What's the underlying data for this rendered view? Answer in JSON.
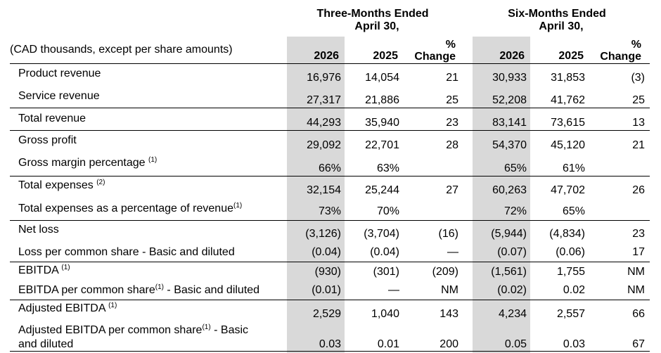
{
  "table": {
    "units_label": "(CAD thousands, except per share amounts)",
    "groups": [
      {
        "line1": "Three-Months Ended",
        "line2": "April 30,"
      },
      {
        "line1": "Six-Months Ended",
        "line2": "April 30,"
      }
    ],
    "columns": [
      "2026",
      "2025",
      "% Change",
      "2026",
      "2025",
      "% Change"
    ],
    "change_label": {
      "line1": "%",
      "line2": "Change"
    },
    "rows": [
      {
        "label": "Product revenue",
        "values": [
          "16,976",
          "14,054",
          "21",
          "30,933",
          "31,853",
          "(3)"
        ]
      },
      {
        "label": "Service revenue",
        "values": [
          "27,317",
          "21,886",
          "25",
          "52,208",
          "41,762",
          "25"
        ]
      },
      {
        "label": "Total revenue",
        "values": [
          "44,293",
          "35,940",
          "23",
          "83,141",
          "73,615",
          "13"
        ]
      },
      {
        "label": "Gross profit",
        "values": [
          "29,092",
          "22,701",
          "28",
          "54,370",
          "45,120",
          "21"
        ]
      },
      {
        "label": "Gross margin percentage",
        "note": "(1)",
        "values": [
          "66%",
          "63%",
          "",
          "65%",
          "61%",
          ""
        ]
      },
      {
        "label": "Total expenses",
        "note": "(2)",
        "values": [
          "32,154",
          "25,244",
          "27",
          "60,263",
          "47,702",
          "26"
        ]
      },
      {
        "label": "Total expenses as a percentage of revenue",
        "note": "(1)",
        "values": [
          "73%",
          "70%",
          "",
          "72%",
          "65%",
          ""
        ]
      },
      {
        "label": "Net loss",
        "values": [
          "(3,126)",
          "(3,704)",
          "(16)",
          "(5,944)",
          "(4,834)",
          "23"
        ]
      },
      {
        "label": "Loss per common share - Basic and diluted",
        "values": [
          "(0.04)",
          "(0.04)",
          "—",
          "(0.07)",
          "(0.06)",
          "17"
        ]
      },
      {
        "label": "EBITDA",
        "note": "(1)",
        "values": [
          "(930)",
          "(301)",
          "(209)",
          "(1,561)",
          "1,755",
          "NM"
        ]
      },
      {
        "label": "EBITDA per common share",
        "note": "(1)",
        "suffix": " - Basic and diluted",
        "values": [
          "(0.01)",
          "—",
          "NM",
          "(0.02)",
          "0.02",
          "NM"
        ]
      },
      {
        "label": "Adjusted EBITDA",
        "note": "(1)",
        "values": [
          "2,529",
          "1,040",
          "143",
          "4,234",
          "2,557",
          "66"
        ]
      },
      {
        "label": "Adjusted EBITDA per common share",
        "note": "(1)",
        "suffix": " - Basic",
        "label2": "and diluted",
        "values": [
          "0.03",
          "0.01",
          "200",
          "0.05",
          "0.03",
          "67"
        ]
      }
    ]
  }
}
